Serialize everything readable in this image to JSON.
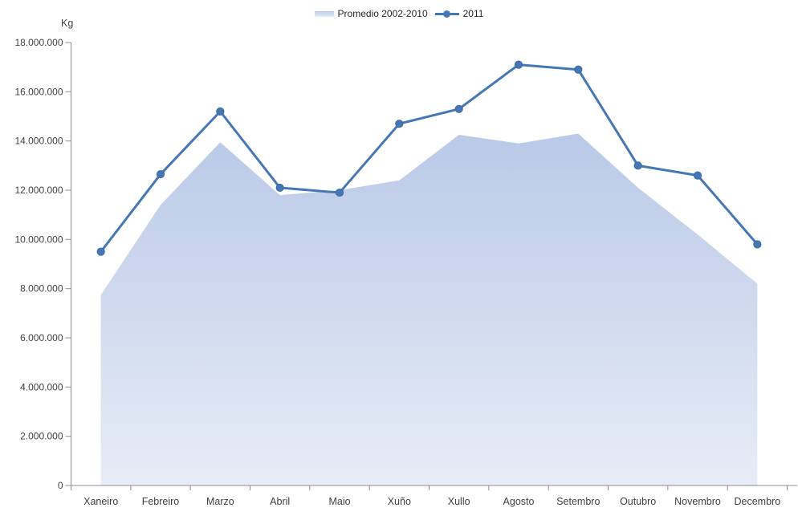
{
  "chart_data": {
    "type": "area+line combo",
    "title": "",
    "xlabel": "",
    "ylabel": "",
    "unit_label": "Kg",
    "legend_position": "top-center",
    "grid": false,
    "categories": [
      "Xaneiro",
      "Febreiro",
      "Marzo",
      "Abril",
      "Maio",
      "Xuño",
      "Xullo",
      "Agosto",
      "Setembro",
      "Outubro",
      "Novembro",
      "Decembro"
    ],
    "series": [
      {
        "name": "Promedio 2002-2010",
        "type": "area",
        "color_top": "#b9c9e7",
        "color_bottom": "#e7ecf6",
        "values": [
          7750000,
          11400000,
          13950000,
          11800000,
          12000000,
          12400000,
          14250000,
          13900000,
          14300000,
          12100000,
          10200000,
          8200000
        ]
      },
      {
        "name": "2011",
        "type": "line",
        "color": "#4577b4",
        "marker_stroke": "#3a69a5",
        "values": [
          9500000,
          12650000,
          15200000,
          12100000,
          11900000,
          14700000,
          15300000,
          17100000,
          16900000,
          13000000,
          12600000,
          9800000
        ]
      }
    ],
    "y_axis": {
      "min": 0,
      "max": 18000000,
      "step": 2000000,
      "tick_labels": [
        "0",
        "2.000.000",
        "4.000.000",
        "6.000.000",
        "8.000.000",
        "10.000.000",
        "12.000.000",
        "14.000.000",
        "16.000.000",
        "18.000.000"
      ]
    },
    "axis_color": "#8c8c8c",
    "tick_text_color": "#3f3f3f"
  }
}
